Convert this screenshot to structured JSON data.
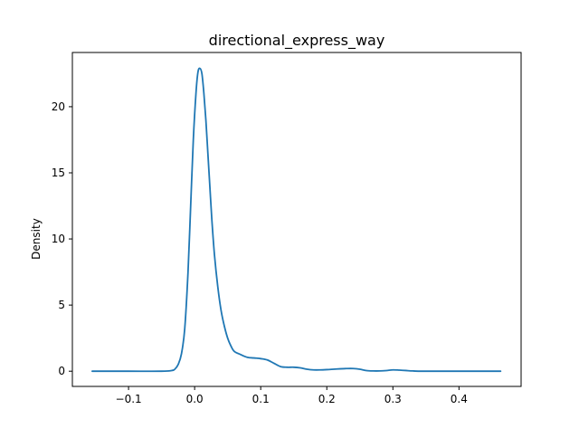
{
  "chart_data": {
    "type": "line",
    "title": "directional_express_way",
    "xlabel": "",
    "ylabel": "Density",
    "xlim": [
      -0.185,
      0.494
    ],
    "ylim": [
      -1.15,
      24.1
    ],
    "xticks": [
      -0.1,
      0.0,
      0.1,
      0.2,
      0.3,
      0.4
    ],
    "xtick_labels": [
      "−0.1",
      "0.0",
      "0.1",
      "0.2",
      "0.3",
      "0.4"
    ],
    "yticks": [
      0,
      5,
      10,
      15,
      20
    ],
    "ytick_labels": [
      "0",
      "5",
      "10",
      "15",
      "20"
    ],
    "grid": false,
    "legend": "none",
    "series": [
      {
        "color": "#1f77b4",
        "x": [
          -0.155,
          -0.1,
          -0.05,
          -0.035,
          -0.03,
          -0.025,
          -0.02,
          -0.015,
          -0.01,
          -0.006,
          -0.002,
          0.002,
          0.005,
          0.008,
          0.011,
          0.014,
          0.017,
          0.02,
          0.023,
          0.026,
          0.03,
          0.035,
          0.04,
          0.045,
          0.05,
          0.055,
          0.06,
          0.07,
          0.08,
          0.09,
          0.1,
          0.11,
          0.12,
          0.13,
          0.14,
          0.15,
          0.16,
          0.17,
          0.18,
          0.19,
          0.2,
          0.21,
          0.22,
          0.23,
          0.24,
          0.25,
          0.26,
          0.27,
          0.28,
          0.29,
          0.3,
          0.31,
          0.32,
          0.33,
          0.34,
          0.35,
          0.38,
          0.42,
          0.463
        ],
        "y": [
          0.0,
          0.0,
          0.0,
          0.05,
          0.15,
          0.5,
          1.3,
          3.2,
          7.5,
          12.5,
          17.5,
          21.0,
          22.6,
          22.9,
          22.5,
          21.0,
          19.0,
          16.5,
          14.0,
          11.5,
          8.8,
          6.4,
          4.6,
          3.4,
          2.5,
          1.9,
          1.5,
          1.25,
          1.05,
          1.0,
          0.95,
          0.85,
          0.6,
          0.35,
          0.3,
          0.3,
          0.25,
          0.15,
          0.1,
          0.1,
          0.12,
          0.15,
          0.18,
          0.2,
          0.2,
          0.15,
          0.05,
          0.02,
          0.02,
          0.05,
          0.1,
          0.08,
          0.05,
          0.02,
          0.0,
          0.0,
          0.0,
          0.0,
          0.0
        ]
      }
    ]
  }
}
